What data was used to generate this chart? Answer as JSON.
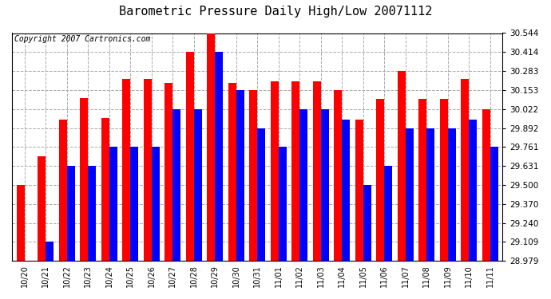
{
  "title": "Barometric Pressure Daily High/Low 20071112",
  "copyright": "Copyright 2007 Cartronics.com",
  "dates": [
    "10/20",
    "10/21",
    "10/22",
    "10/23",
    "10/24",
    "10/25",
    "10/26",
    "10/27",
    "10/28",
    "10/29",
    "10/30",
    "10/31",
    "11/01",
    "11/02",
    "11/03",
    "11/04",
    "11/05",
    "11/06",
    "11/07",
    "11/08",
    "11/09",
    "11/10",
    "11/11"
  ],
  "highs": [
    29.5,
    29.7,
    29.95,
    30.1,
    29.96,
    30.23,
    30.23,
    30.2,
    30.414,
    30.544,
    30.2,
    30.153,
    30.21,
    30.21,
    30.21,
    30.153,
    29.95,
    30.09,
    30.283,
    30.09,
    30.09,
    30.23,
    30.022
  ],
  "lows": [
    28.979,
    29.109,
    29.63,
    29.63,
    29.761,
    29.761,
    29.761,
    30.022,
    30.022,
    30.414,
    30.153,
    29.892,
    29.761,
    30.022,
    30.022,
    29.95,
    29.5,
    29.631,
    29.892,
    29.892,
    29.892,
    29.95,
    29.761
  ],
  "yticks": [
    28.979,
    29.109,
    29.24,
    29.37,
    29.5,
    29.631,
    29.761,
    29.892,
    30.022,
    30.153,
    30.283,
    30.414,
    30.544
  ],
  "ymin": 28.979,
  "ymax": 30.544,
  "bar_width": 0.38,
  "high_color": "#FF0000",
  "low_color": "#0000FF",
  "bg_color": "#FFFFFF",
  "grid_color": "#AAAAAA",
  "title_fontsize": 11,
  "copyright_fontsize": 7,
  "tick_fontsize": 7.5,
  "xlabel_fontsize": 7
}
